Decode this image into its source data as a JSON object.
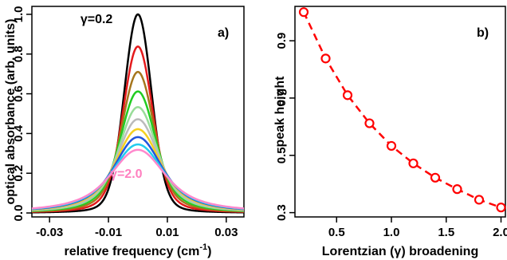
{
  "chart_data": [
    {
      "type": "line",
      "panel_label": "a)",
      "xlabel": "relative frequency (cm",
      "xlabel_sup": "-1",
      "xlabel_tail": ")",
      "ylabel": "optical absorbance (arb. units)",
      "xlim": [
        -0.036,
        0.036
      ],
      "ylim": [
        -0.02,
        1.04
      ],
      "xticks": [
        "-0.03",
        "-0.01",
        "0.01",
        "0.03"
      ],
      "xtick_values": [
        -0.03,
        -0.01,
        0.01,
        0.03
      ],
      "yticks": [
        "0.0",
        "0.2",
        "0.4",
        "0.6",
        "0.8",
        "1.0"
      ],
      "ytick_values": [
        0.0,
        0.2,
        0.4,
        0.6,
        0.8,
        1.0
      ],
      "annotations": [
        {
          "text": "γ=0.2",
          "x": -0.006,
          "y": 0.98,
          "color": "#000000"
        },
        {
          "text": "γ=2.0",
          "x": -0.0035,
          "y": 0.2,
          "color": "#ff7fbf"
        }
      ],
      "lineshape": "voigt",
      "gaussian_sigma": 0.00425,
      "series": [
        {
          "gamma": 0.2,
          "peak": 1.0,
          "color": "#000000"
        },
        {
          "gamma": 0.4,
          "peak": 0.838,
          "color": "#e41a1c"
        },
        {
          "gamma": 0.6,
          "peak": 0.71,
          "color": "#a6761d"
        },
        {
          "gamma": 0.8,
          "peak": 0.612,
          "color": "#22cc22"
        },
        {
          "gamma": 1.0,
          "peak": 0.533,
          "color": "#99dd99"
        },
        {
          "gamma": 1.2,
          "peak": 0.472,
          "color": "#bbbbbb"
        },
        {
          "gamma": 1.4,
          "peak": 0.422,
          "color": "#f5d020"
        },
        {
          "gamma": 1.6,
          "peak": 0.382,
          "color": "#2255dd"
        },
        {
          "gamma": 1.8,
          "peak": 0.345,
          "color": "#22ccee"
        },
        {
          "gamma": 2.0,
          "peak": 0.318,
          "color": "#ff88cc"
        }
      ]
    },
    {
      "type": "scatter",
      "panel_label": "b)",
      "xlabel": "Lorentzian (γ) broadening",
      "ylabel": "peak height",
      "xlim": [
        0.12,
        2.04
      ],
      "ylim": [
        0.285,
        1.02
      ],
      "xticks": [
        "0.5",
        "1.0",
        "1.5",
        "2.0"
      ],
      "xtick_values": [
        0.5,
        1.0,
        1.5,
        2.0
      ],
      "yticks": [
        "0.3",
        "0.5",
        "0.7",
        "0.9"
      ],
      "ytick_values": [
        0.3,
        0.5,
        0.7,
        0.9
      ],
      "color": "#ff0000",
      "points": [
        {
          "x": 0.2,
          "y": 1.0
        },
        {
          "x": 0.4,
          "y": 0.838
        },
        {
          "x": 0.6,
          "y": 0.71
        },
        {
          "x": 0.8,
          "y": 0.612
        },
        {
          "x": 1.0,
          "y": 0.533
        },
        {
          "x": 1.2,
          "y": 0.472
        },
        {
          "x": 1.4,
          "y": 0.422
        },
        {
          "x": 1.6,
          "y": 0.382
        },
        {
          "x": 1.8,
          "y": 0.345
        },
        {
          "x": 2.0,
          "y": 0.318
        }
      ]
    }
  ]
}
